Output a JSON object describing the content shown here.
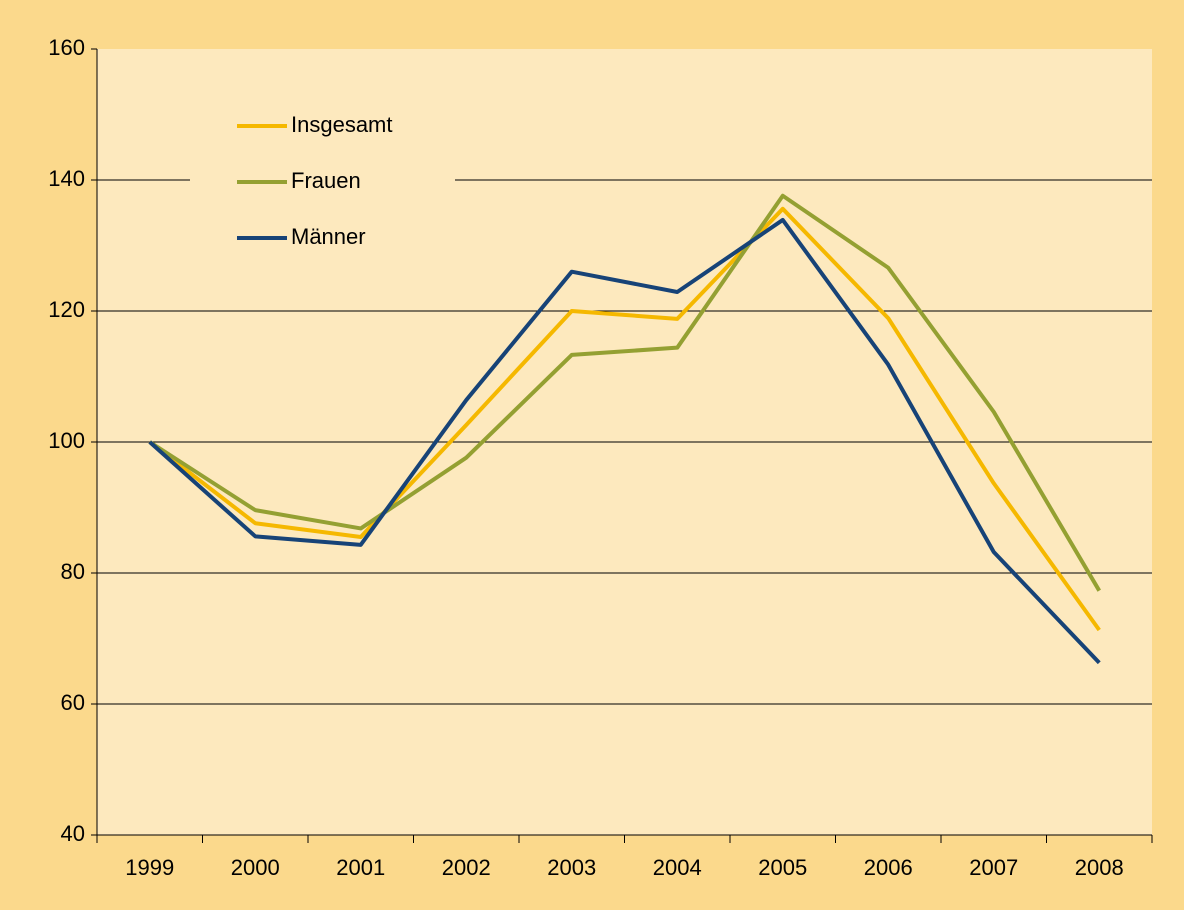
{
  "chart_data": {
    "type": "line",
    "categories": [
      "1999",
      "2000",
      "2001",
      "2002",
      "2003",
      "2004",
      "2005",
      "2006",
      "2007",
      "2008"
    ],
    "series": [
      {
        "name": "Insgesamt",
        "color": "#f5b800",
        "values": [
          100,
          87.6,
          85.5,
          102.6,
          120,
          118.8,
          135.6,
          118.9,
          93.7,
          71.3
        ]
      },
      {
        "name": "Frauen",
        "color": "#94a032",
        "values": [
          100,
          89.6,
          86.8,
          97.6,
          113.3,
          114.4,
          137.6,
          126.6,
          104.6,
          77.3
        ]
      },
      {
        "name": "Männer",
        "color": "#174377",
        "values": [
          100,
          85.6,
          84.3,
          106.4,
          126,
          122.9,
          133.9,
          111.8,
          83.2,
          66.3
        ]
      }
    ],
    "ylim": [
      40,
      160
    ],
    "yticks": [
      40,
      60,
      80,
      100,
      120,
      140,
      160
    ],
    "grid": true,
    "legend": "top-left"
  }
}
